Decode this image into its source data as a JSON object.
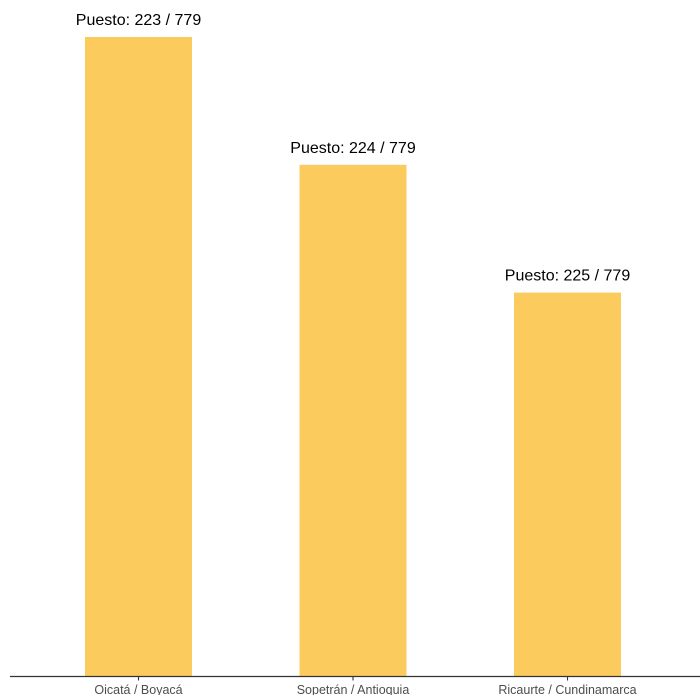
{
  "chart_data": {
    "type": "bar",
    "title": "",
    "xlabel": "",
    "ylabel": "",
    "categories": [
      "Oicatá / Boyacá",
      "Sopetrán / Antioquia",
      "Ricaurte / Cundinamarca"
    ],
    "values": [
      557,
      556,
      555
    ],
    "data_labels": [
      "Puesto: 223 / 779",
      "Puesto: 224 / 779",
      "Puesto: 225 / 779"
    ],
    "ylim": [
      552,
      557
    ],
    "grid": false,
    "y_axis_visible": false,
    "colors": {
      "bar": "#FCCB5E",
      "axis": "#333333",
      "tick_text": "#4d4d4d",
      "label_text": "#000000"
    }
  }
}
